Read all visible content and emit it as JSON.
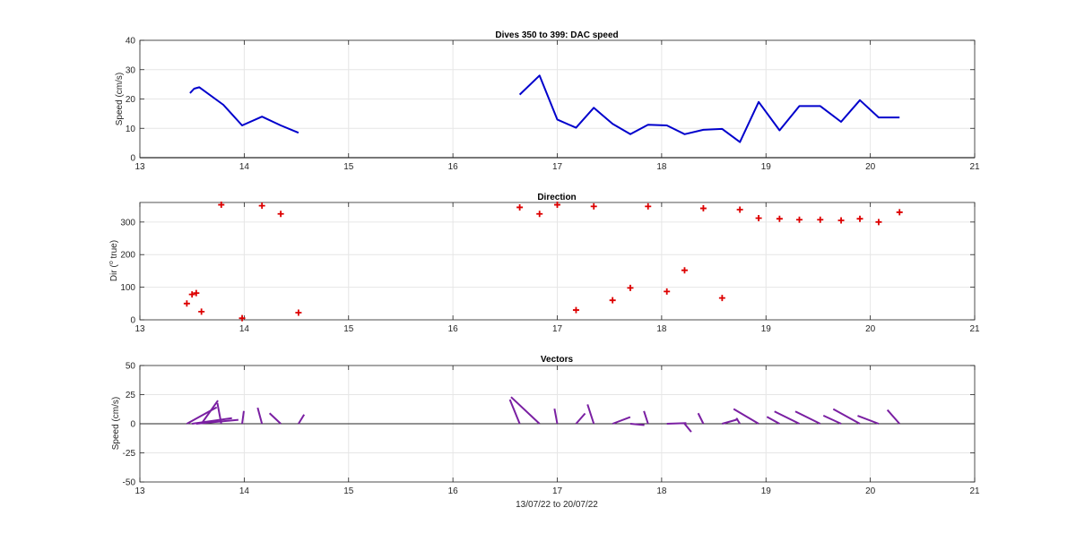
{
  "colors": {
    "speed_line": "#0000cc",
    "direction_marker": "#dd0000",
    "vectors": "#7a1fa2",
    "grid": "#e6e6e6",
    "axes": "#262626"
  },
  "chart_data": [
    {
      "type": "line",
      "title": "Dives 350 to 399: DAC speed",
      "ylabel": "Speed (cm/s)",
      "xlabel": "",
      "xlim": [
        13,
        21
      ],
      "ylim": [
        0,
        40
      ],
      "grid": true,
      "xticks": [
        "13",
        "14",
        "15",
        "16",
        "17",
        "18",
        "19",
        "20",
        "21"
      ],
      "yticks": [
        "0",
        "10",
        "20",
        "30",
        "40"
      ],
      "series": [
        {
          "segments": [
            {
              "x": [
                13.48,
                13.52,
                13.57,
                13.8,
                13.98,
                14.17,
                14.35,
                14.52
              ],
              "y": [
                22,
                23.5,
                24,
                18,
                11,
                14,
                11,
                8.5
              ]
            },
            {
              "x": [
                16.64,
                16.83,
                17.0,
                17.18,
                17.35,
                17.53,
                17.7,
                17.87,
                18.05,
                18.22,
                18.4,
                18.58,
                18.75,
                18.93,
                19.13,
                19.32,
                19.52,
                19.72,
                19.9,
                20.08,
                20.28
              ],
              "y": [
                21.5,
                28,
                13,
                10.2,
                17,
                11.5,
                8,
                11.2,
                11,
                8,
                9.5,
                9.8,
                5.3,
                19,
                9.3,
                17.6,
                17.6,
                12.2,
                19.6,
                13.7,
                13.7
              ]
            }
          ]
        }
      ]
    },
    {
      "type": "scatter",
      "title": "Direction",
      "ylabel": "Dir (° true)",
      "ylabel_parts": [
        "Dir (",
        "o",
        " true)"
      ],
      "xlabel": "",
      "xlim": [
        13,
        21
      ],
      "ylim": [
        0,
        360
      ],
      "grid": true,
      "marker": "+",
      "xticks": [
        "13",
        "14",
        "15",
        "16",
        "17",
        "18",
        "19",
        "20",
        "21"
      ],
      "yticks": [
        "0",
        "100",
        "200",
        "300"
      ],
      "x": [
        13.45,
        13.5,
        13.54,
        13.59,
        13.78,
        13.98,
        14.17,
        14.35,
        14.52,
        16.64,
        16.83,
        17.0,
        17.18,
        17.35,
        17.53,
        17.7,
        17.87,
        18.05,
        18.22,
        18.4,
        18.58,
        18.75,
        18.93,
        19.13,
        19.32,
        19.52,
        19.72,
        19.9,
        20.08,
        20.28
      ],
      "y": [
        50,
        78,
        82,
        25,
        353,
        5,
        350,
        325,
        22,
        345,
        325,
        353,
        30,
        348,
        60,
        98,
        348,
        87,
        152,
        342,
        67,
        338,
        312,
        310,
        307,
        307,
        305,
        310,
        300,
        330
      ]
    },
    {
      "type": "vector",
      "title": "Vectors",
      "ylabel": "Speed (cm/s)",
      "xlabel": "13/07/22 to 20/07/22",
      "xlim": [
        13,
        21
      ],
      "ylim": [
        -50,
        50
      ],
      "grid": true,
      "zero_line": true,
      "xticks": [
        "13",
        "14",
        "15",
        "16",
        "17",
        "18",
        "19",
        "20",
        "21"
      ],
      "yticks": [
        "-50",
        "-25",
        "0",
        "25",
        "50"
      ],
      "origin_x": [
        13.45,
        13.5,
        13.54,
        13.59,
        13.78,
        13.98,
        14.17,
        14.35,
        14.52,
        16.64,
        16.83,
        17.0,
        17.18,
        17.35,
        17.53,
        17.7,
        17.87,
        18.05,
        18.22,
        18.4,
        18.58,
        18.75,
        18.93,
        19.13,
        19.32,
        19.52,
        19.72,
        19.9,
        20.08,
        20.28
      ],
      "speed": [
        22,
        23,
        24,
        22,
        18,
        11,
        14,
        11,
        8.5,
        21.5,
        28,
        13,
        10.2,
        17,
        11.5,
        8,
        11.2,
        11,
        8,
        9.5,
        9.8,
        5.3,
        19,
        9.3,
        17.6,
        17.6,
        12.2,
        19.6,
        13.7,
        13.7
      ],
      "direction": [
        50,
        78,
        82,
        25,
        353,
        5,
        350,
        325,
        22,
        345,
        325,
        353,
        30,
        348,
        60,
        98,
        348,
        87,
        152,
        342,
        67,
        338,
        312,
        310,
        307,
        307,
        305,
        310,
        300,
        330
      ]
    }
  ]
}
